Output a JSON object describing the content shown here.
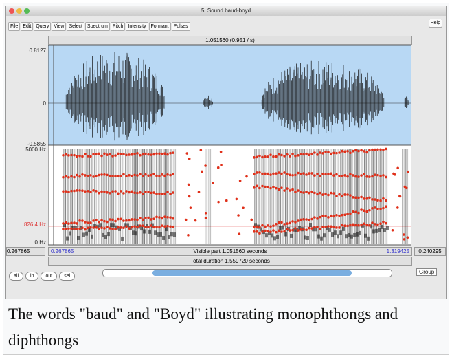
{
  "window": {
    "title": "5. Sound baud-boyd"
  },
  "menu": [
    "File",
    "Edit",
    "Query",
    "View",
    "Select",
    "Spectrum",
    "Pitch",
    "Intensity",
    "Formant",
    "Pulses"
  ],
  "help": "Help",
  "selection_bar": "1.051560 (0.951 / s)",
  "waveform": {
    "max_label": "0.8127",
    "zero_label": "0",
    "min_label": "-0.5855"
  },
  "spectrogram": {
    "max_label": "5000 Hz",
    "cursor_label": "826.4 Hz",
    "min_label": "0 Hz"
  },
  "time_bar": {
    "left_outside": "0.267865",
    "left": "0.267865",
    "visible": "Visible part 1.051560 seconds",
    "right": "1.319425",
    "right_outside": "0.240295",
    "total": "Total duration 1.559720 seconds"
  },
  "buttons": [
    "all",
    "in",
    "out",
    "sel"
  ],
  "group": "Group",
  "caption": "The words \"baud\" and \"Boyd\" illustrating monophthongs and diphthongs"
}
